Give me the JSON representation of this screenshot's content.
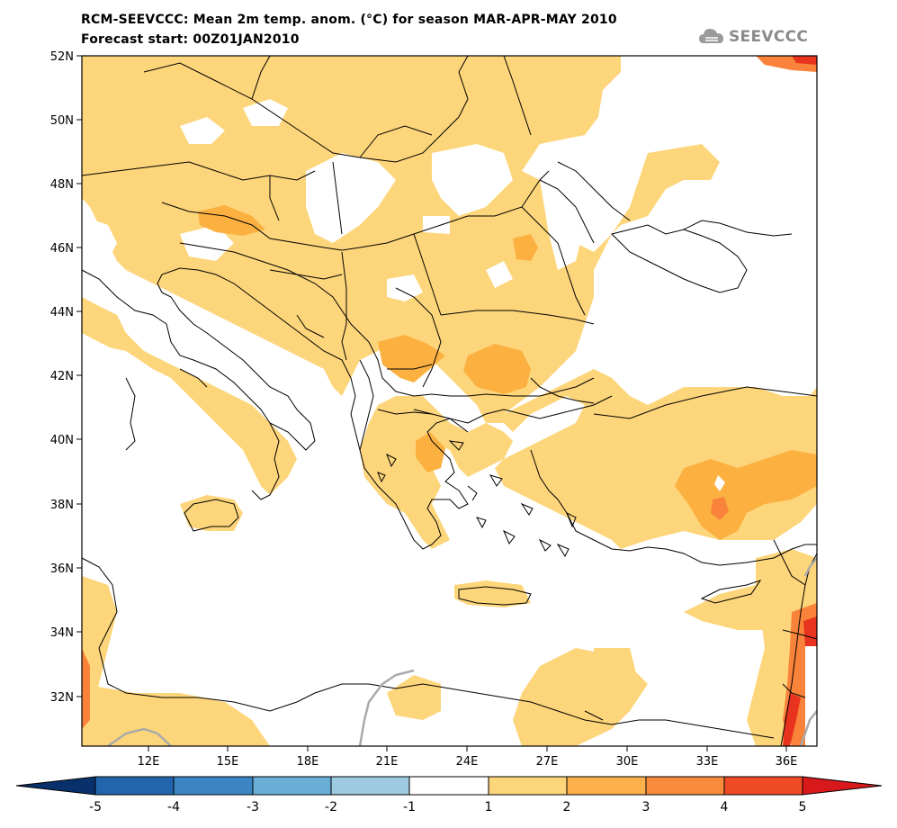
{
  "header": {
    "title_line1": "RCM-SEEVCCC: Mean 2m temp. anom. (°C) for season MAR-APR-MAY 2010",
    "title_line2": "Forecast start: 00Z01JAN2010"
  },
  "logo": {
    "text": "SEEVCCC",
    "icon": "cloud-icon"
  },
  "map": {
    "lat_labels": [
      "52N",
      "50N",
      "48N",
      "46N",
      "44N",
      "42N",
      "40N",
      "38N",
      "36N",
      "34N",
      "32N"
    ],
    "lon_labels": [
      "12E",
      "15E",
      "18E",
      "21E",
      "24E",
      "27E",
      "30E",
      "33E",
      "36E"
    ]
  },
  "colorbar": {
    "labels": [
      "-5",
      "-4",
      "-3",
      "-2",
      "-1",
      "1",
      "2",
      "3",
      "4",
      "5"
    ],
    "colors": [
      "#2166ac",
      "#3b86c2",
      "#6aaed6",
      "#9ecae1",
      "#ffffff",
      "#fdd57a",
      "#fdb04b",
      "#f98c3c",
      "#ef4a26"
    ],
    "extend_low_color": "#08306b",
    "extend_high_color": "#d7191c"
  },
  "anomaly_colors": {
    "light": "#fdd57a",
    "medium": "#fbb040",
    "strong": "#f9833a",
    "very_strong": "#e8341e"
  }
}
